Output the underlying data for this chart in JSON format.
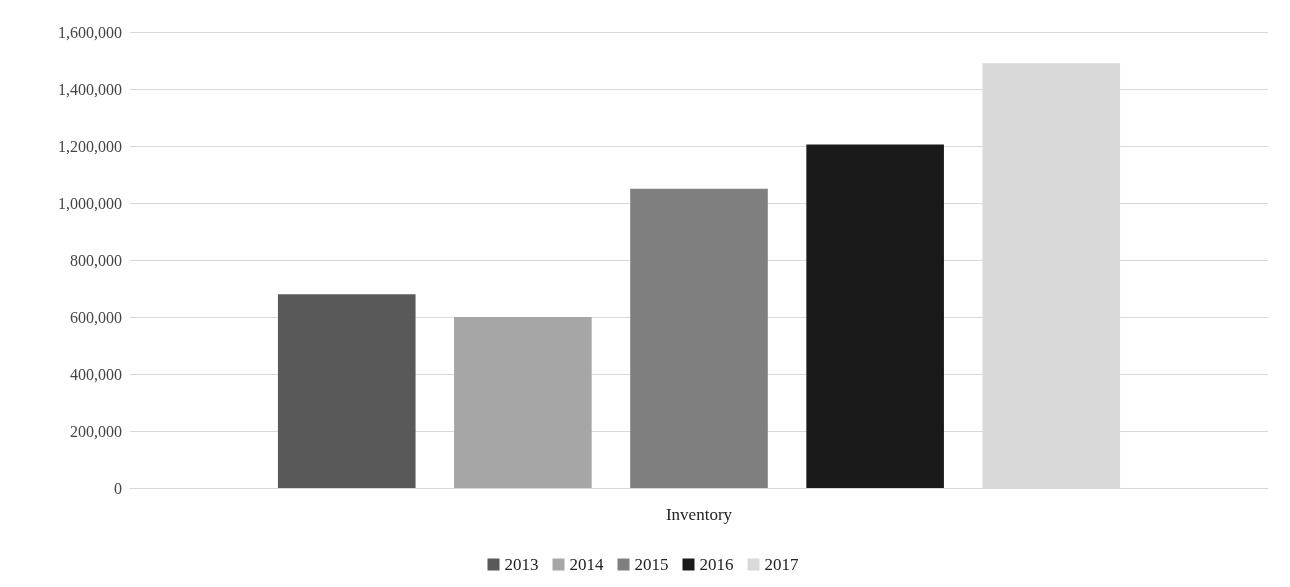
{
  "chart_data": {
    "type": "bar",
    "categories": [
      "Inventory"
    ],
    "series": [
      {
        "name": "2013",
        "color": "#595959",
        "values": [
          680000
        ]
      },
      {
        "name": "2014",
        "color": "#a6a6a6",
        "values": [
          600000
        ]
      },
      {
        "name": "2015",
        "color": "#7f7f7f",
        "values": [
          1050000
        ]
      },
      {
        "name": "2016",
        "color": "#1a1a1a",
        "values": [
          1205000
        ]
      },
      {
        "name": "2017",
        "color": "#d9d9d9",
        "values": [
          1490000
        ]
      }
    ],
    "ylim": [
      0,
      1600000
    ],
    "yticks": [
      0,
      {
        "value": 200000,
        "label": "200,000"
      },
      {
        "value": 400000,
        "label": "400,000"
      },
      {
        "value": 600000,
        "label": "600,000"
      },
      {
        "value": 800000,
        "label": "800,000"
      },
      {
        "value": 1000000,
        "label": "1,000,000"
      },
      {
        "value": 1200000,
        "label": "1,200,000"
      },
      {
        "value": 1400000,
        "label": "1,400,000"
      },
      {
        "value": 1600000,
        "label": "1,600,000"
      }
    ],
    "grid": "y",
    "legend": "bottom"
  }
}
